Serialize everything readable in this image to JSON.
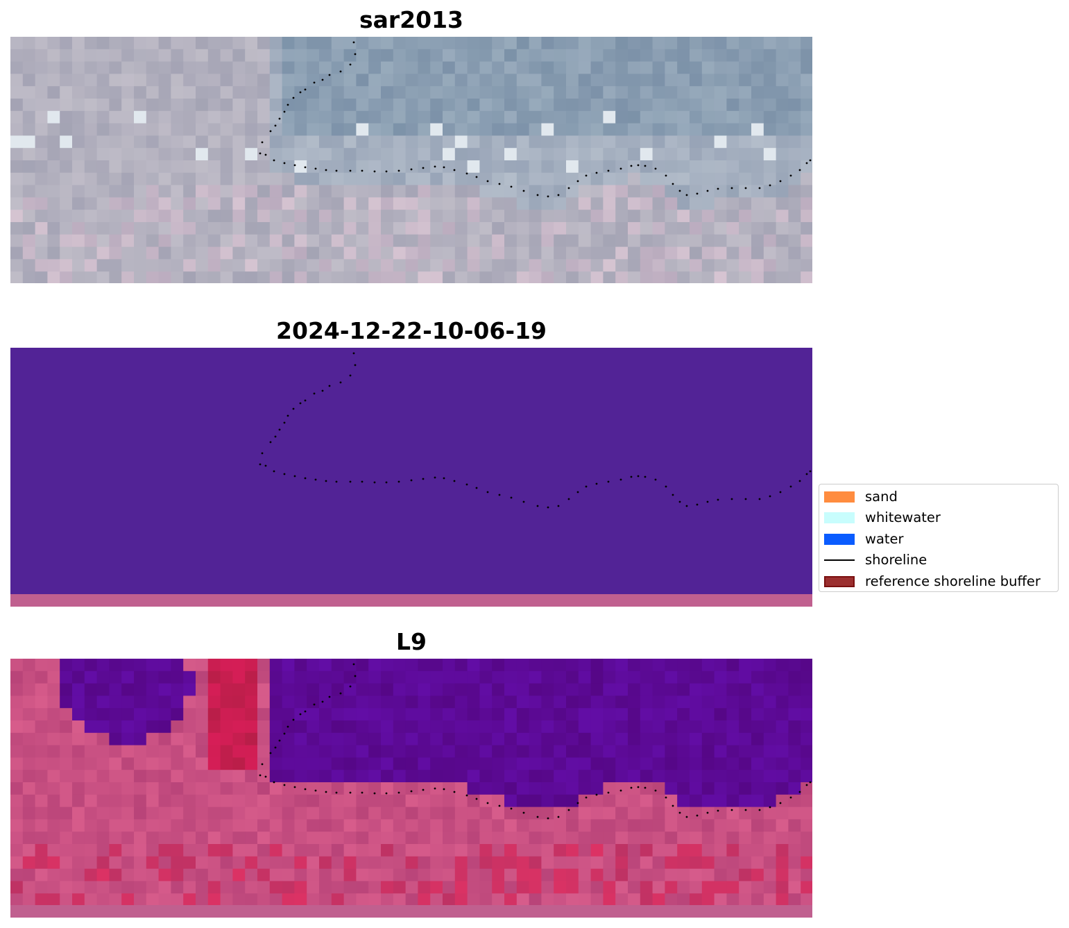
{
  "panels": [
    {
      "title": "sar2013"
    },
    {
      "title": "2024-12-22-10-06-19"
    },
    {
      "title": "L9"
    }
  ],
  "legend": {
    "items": [
      {
        "label": "sand",
        "kind": "patch",
        "color": "#ff8c3f"
      },
      {
        "label": "whitewater",
        "kind": "patch",
        "color": "#c8fdfd"
      },
      {
        "label": "water",
        "kind": "patch",
        "color": "#0a5cff"
      },
      {
        "label": "shoreline",
        "kind": "line",
        "color": "#000000"
      },
      {
        "label": "reference shoreline buffer",
        "kind": "patch",
        "color": "#9b2f2f",
        "edge": "#7a1010"
      }
    ]
  },
  "colors": {
    "classification_fill": "#522396",
    "classification_strip": "#c0608f",
    "rgb_base": "#9aaab8",
    "ndwi_water": "#5a0a9a",
    "ndwi_land": "#c8507f",
    "shoreline_dots": "#000000"
  }
}
